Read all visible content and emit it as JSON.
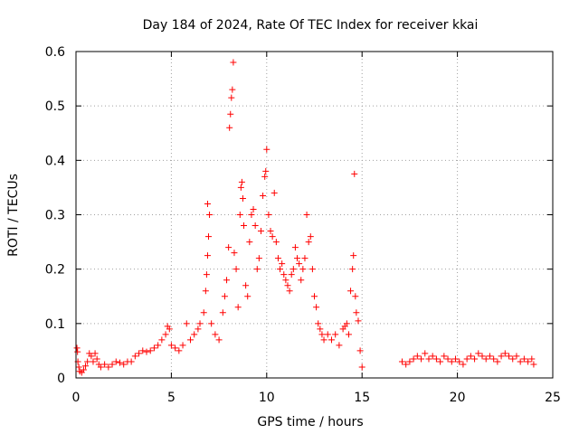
{
  "chart_data": {
    "type": "scatter",
    "title": "Day 184 of 2024, Rate Of TEC Index for receiver kkai",
    "xlabel": "GPS time / hours",
    "ylabel": "ROTI / TECUs",
    "xlim": [
      0,
      25
    ],
    "ylim": [
      0,
      0.6
    ],
    "xticks": [
      0,
      5,
      10,
      15,
      20,
      25
    ],
    "yticks": [
      0,
      0.1,
      0.2,
      0.3,
      0.4,
      0.5,
      0.6
    ],
    "xtick_labels": [
      "0",
      "5",
      "10",
      "15",
      "20",
      "25"
    ],
    "ytick_labels": [
      "0",
      "0.1",
      "0.2",
      "0.3",
      "0.4",
      "0.5",
      "0.6"
    ],
    "grid": true,
    "marker": "+",
    "color": "#ff0000",
    "series": [
      {
        "name": "ROTI",
        "points": [
          [
            0.05,
            0.055
          ],
          [
            0.08,
            0.048
          ],
          [
            0.1,
            0.03
          ],
          [
            0.15,
            0.02
          ],
          [
            0.2,
            0.012
          ],
          [
            0.3,
            0.01
          ],
          [
            0.4,
            0.015
          ],
          [
            0.5,
            0.022
          ],
          [
            0.6,
            0.03
          ],
          [
            0.7,
            0.045
          ],
          [
            0.8,
            0.04
          ],
          [
            0.9,
            0.03
          ],
          [
            1.0,
            0.045
          ],
          [
            1.1,
            0.035
          ],
          [
            1.2,
            0.025
          ],
          [
            1.3,
            0.02
          ],
          [
            1.5,
            0.025
          ],
          [
            1.7,
            0.02
          ],
          [
            1.9,
            0.025
          ],
          [
            2.1,
            0.03
          ],
          [
            2.3,
            0.028
          ],
          [
            2.5,
            0.025
          ],
          [
            2.7,
            0.03
          ],
          [
            2.9,
            0.03
          ],
          [
            3.1,
            0.04
          ],
          [
            3.3,
            0.045
          ],
          [
            3.5,
            0.05
          ],
          [
            3.7,
            0.048
          ],
          [
            3.9,
            0.05
          ],
          [
            4.1,
            0.055
          ],
          [
            4.3,
            0.06
          ],
          [
            4.5,
            0.07
          ],
          [
            4.7,
            0.08
          ],
          [
            4.8,
            0.095
          ],
          [
            4.9,
            0.09
          ],
          [
            5.0,
            0.06
          ],
          [
            5.2,
            0.055
          ],
          [
            5.4,
            0.05
          ],
          [
            5.6,
            0.06
          ],
          [
            5.8,
            0.1
          ],
          [
            6.0,
            0.07
          ],
          [
            6.2,
            0.08
          ],
          [
            6.4,
            0.09
          ],
          [
            6.5,
            0.1
          ],
          [
            6.7,
            0.12
          ],
          [
            6.8,
            0.16
          ],
          [
            6.85,
            0.19
          ],
          [
            6.9,
            0.225
          ],
          [
            6.95,
            0.26
          ],
          [
            7.0,
            0.3
          ],
          [
            6.9,
            0.32
          ],
          [
            7.1,
            0.1
          ],
          [
            7.3,
            0.08
          ],
          [
            7.5,
            0.07
          ],
          [
            7.7,
            0.12
          ],
          [
            7.8,
            0.15
          ],
          [
            7.9,
            0.18
          ],
          [
            8.0,
            0.24
          ],
          [
            8.05,
            0.46
          ],
          [
            8.1,
            0.485
          ],
          [
            8.15,
            0.515
          ],
          [
            8.2,
            0.53
          ],
          [
            8.25,
            0.58
          ],
          [
            8.3,
            0.23
          ],
          [
            8.4,
            0.2
          ],
          [
            8.5,
            0.13
          ],
          [
            8.6,
            0.3
          ],
          [
            8.65,
            0.35
          ],
          [
            8.7,
            0.36
          ],
          [
            8.75,
            0.33
          ],
          [
            8.8,
            0.28
          ],
          [
            8.9,
            0.17
          ],
          [
            9.0,
            0.15
          ],
          [
            9.1,
            0.25
          ],
          [
            9.2,
            0.3
          ],
          [
            9.3,
            0.31
          ],
          [
            9.4,
            0.28
          ],
          [
            9.5,
            0.2
          ],
          [
            9.6,
            0.22
          ],
          [
            9.7,
            0.27
          ],
          [
            9.8,
            0.335
          ],
          [
            9.9,
            0.37
          ],
          [
            9.95,
            0.38
          ],
          [
            10.0,
            0.42
          ],
          [
            10.1,
            0.3
          ],
          [
            10.2,
            0.27
          ],
          [
            10.3,
            0.26
          ],
          [
            10.4,
            0.34
          ],
          [
            10.5,
            0.25
          ],
          [
            10.6,
            0.22
          ],
          [
            10.7,
            0.2
          ],
          [
            10.8,
            0.21
          ],
          [
            10.9,
            0.19
          ],
          [
            11.0,
            0.18
          ],
          [
            11.1,
            0.17
          ],
          [
            11.2,
            0.16
          ],
          [
            11.3,
            0.19
          ],
          [
            11.4,
            0.2
          ],
          [
            11.5,
            0.24
          ],
          [
            11.6,
            0.22
          ],
          [
            11.7,
            0.21
          ],
          [
            11.8,
            0.18
          ],
          [
            11.9,
            0.2
          ],
          [
            12.0,
            0.22
          ],
          [
            12.1,
            0.3
          ],
          [
            12.2,
            0.25
          ],
          [
            12.3,
            0.26
          ],
          [
            12.4,
            0.2
          ],
          [
            12.5,
            0.15
          ],
          [
            12.6,
            0.13
          ],
          [
            12.7,
            0.1
          ],
          [
            12.8,
            0.09
          ],
          [
            12.9,
            0.08
          ],
          [
            13.0,
            0.07
          ],
          [
            13.2,
            0.08
          ],
          [
            13.4,
            0.07
          ],
          [
            13.6,
            0.08
          ],
          [
            13.8,
            0.06
          ],
          [
            14.0,
            0.09
          ],
          [
            14.1,
            0.095
          ],
          [
            14.2,
            0.1
          ],
          [
            14.3,
            0.08
          ],
          [
            14.4,
            0.16
          ],
          [
            14.5,
            0.2
          ],
          [
            14.55,
            0.225
          ],
          [
            14.6,
            0.375
          ],
          [
            14.65,
            0.15
          ],
          [
            14.7,
            0.12
          ],
          [
            14.8,
            0.105
          ],
          [
            14.9,
            0.05
          ],
          [
            15.0,
            0.02
          ],
          [
            17.1,
            0.03
          ],
          [
            17.3,
            0.025
          ],
          [
            17.5,
            0.03
          ],
          [
            17.7,
            0.035
          ],
          [
            17.9,
            0.04
          ],
          [
            18.1,
            0.035
          ],
          [
            18.3,
            0.045
          ],
          [
            18.5,
            0.035
          ],
          [
            18.7,
            0.04
          ],
          [
            18.9,
            0.035
          ],
          [
            19.1,
            0.03
          ],
          [
            19.3,
            0.04
          ],
          [
            19.5,
            0.035
          ],
          [
            19.7,
            0.03
          ],
          [
            19.9,
            0.035
          ],
          [
            20.1,
            0.03
          ],
          [
            20.3,
            0.025
          ],
          [
            20.5,
            0.035
          ],
          [
            20.7,
            0.04
          ],
          [
            20.9,
            0.035
          ],
          [
            21.1,
            0.045
          ],
          [
            21.3,
            0.04
          ],
          [
            21.5,
            0.035
          ],
          [
            21.7,
            0.04
          ],
          [
            21.9,
            0.035
          ],
          [
            22.1,
            0.03
          ],
          [
            22.3,
            0.04
          ],
          [
            22.5,
            0.045
          ],
          [
            22.7,
            0.04
          ],
          [
            22.9,
            0.035
          ],
          [
            23.1,
            0.04
          ],
          [
            23.3,
            0.03
          ],
          [
            23.5,
            0.035
          ],
          [
            23.7,
            0.03
          ],
          [
            23.9,
            0.035
          ],
          [
            24.0,
            0.025
          ]
        ]
      }
    ]
  }
}
